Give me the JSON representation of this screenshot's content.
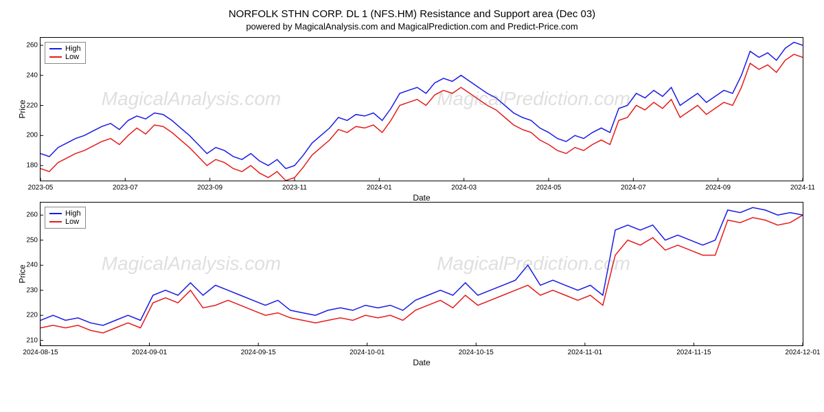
{
  "title": "NORFOLK STHN CORP.  DL 1 (NFS.HM) Resistance and Support area (Dec 03)",
  "subtitle": "powered by MagicalAnalysis.com and MagicalPrediction.com and Predict-Price.com",
  "colors": {
    "high": "#1a1ae6",
    "low": "#e61a1a",
    "axis": "#000000",
    "grid": "#e0e0e0",
    "watermark": "rgba(128,128,128,0.25)"
  },
  "legend": {
    "high_label": "High",
    "low_label": "Low"
  },
  "watermarks": [
    "MagicalAnalysis.com",
    "MagicalPrediction.com"
  ],
  "chart_top": {
    "ylabel": "Price",
    "xlabel": "Date",
    "ylim": [
      170,
      265
    ],
    "yticks": [
      180,
      200,
      220,
      240,
      260
    ],
    "xticks": [
      "2023-05",
      "2023-07",
      "2023-09",
      "2023-11",
      "2024-01",
      "2024-03",
      "2024-05",
      "2024-07",
      "2024-09",
      "2024-11"
    ],
    "high": [
      188,
      186,
      192,
      195,
      198,
      200,
      203,
      206,
      208,
      204,
      210,
      213,
      211,
      215,
      214,
      210,
      205,
      200,
      194,
      188,
      192,
      190,
      186,
      184,
      188,
      183,
      180,
      184,
      178,
      180,
      187,
      195,
      200,
      205,
      212,
      210,
      214,
      213,
      215,
      210,
      218,
      228,
      230,
      232,
      228,
      235,
      238,
      236,
      240,
      236,
      232,
      228,
      225,
      220,
      215,
      212,
      210,
      205,
      202,
      198,
      196,
      200,
      198,
      202,
      205,
      202,
      218,
      220,
      228,
      225,
      230,
      226,
      232,
      220,
      224,
      228,
      222,
      226,
      230,
      228,
      240,
      256,
      252,
      255,
      250,
      258,
      262,
      260
    ],
    "low": [
      178,
      176,
      182,
      185,
      188,
      190,
      193,
      196,
      198,
      194,
      200,
      205,
      201,
      207,
      206,
      202,
      197,
      192,
      186,
      180,
      184,
      182,
      178,
      176,
      180,
      175,
      172,
      176,
      170,
      172,
      179,
      187,
      192,
      197,
      204,
      202,
      206,
      205,
      207,
      202,
      210,
      220,
      222,
      224,
      220,
      227,
      230,
      228,
      232,
      228,
      224,
      220,
      217,
      212,
      207,
      204,
      202,
      197,
      194,
      190,
      188,
      192,
      190,
      194,
      197,
      194,
      210,
      212,
      220,
      217,
      222,
      218,
      224,
      212,
      216,
      220,
      214,
      218,
      222,
      220,
      232,
      248,
      244,
      247,
      242,
      250,
      254,
      252
    ]
  },
  "chart_bottom": {
    "ylabel": "Price",
    "xlabel": "Date",
    "ylim": [
      208,
      265
    ],
    "yticks": [
      210,
      220,
      230,
      240,
      250,
      260
    ],
    "xticks": [
      "2024-08-15",
      "2024-09-01",
      "2024-09-15",
      "2024-10-01",
      "2024-10-15",
      "2024-11-01",
      "2024-11-15",
      "2024-12-01"
    ],
    "high": [
      218,
      220,
      218,
      219,
      217,
      216,
      218,
      220,
      218,
      228,
      230,
      228,
      233,
      228,
      232,
      230,
      228,
      226,
      224,
      226,
      222,
      221,
      220,
      222,
      223,
      222,
      224,
      223,
      224,
      222,
      226,
      228,
      230,
      228,
      233,
      228,
      230,
      232,
      234,
      240,
      232,
      234,
      232,
      230,
      232,
      228,
      254,
      256,
      254,
      256,
      250,
      252,
      250,
      248,
      250,
      262,
      261,
      263,
      262,
      260,
      261,
      260
    ],
    "low": [
      215,
      216,
      215,
      216,
      214,
      213,
      215,
      217,
      215,
      225,
      227,
      225,
      230,
      223,
      224,
      226,
      224,
      222,
      220,
      221,
      219,
      218,
      217,
      218,
      219,
      218,
      220,
      219,
      220,
      218,
      222,
      224,
      226,
      223,
      228,
      224,
      226,
      228,
      230,
      232,
      228,
      230,
      228,
      226,
      228,
      224,
      244,
      250,
      248,
      251,
      246,
      248,
      246,
      244,
      244,
      258,
      257,
      259,
      258,
      256,
      257,
      260
    ]
  }
}
